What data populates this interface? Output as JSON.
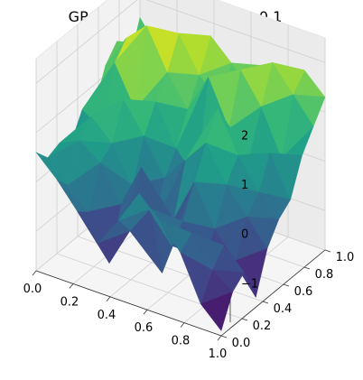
{
  "chart_data": {
    "type": "surface3d",
    "title": "GP prior with length scale 0.1",
    "xlabel": "",
    "ylabel": "",
    "zlabel": "",
    "xlim": [
      0.0,
      1.0
    ],
    "ylim": [
      0.0,
      1.0
    ],
    "zlim": [
      -1.8,
      2.5
    ],
    "x_ticks": [
      "0.0",
      "0.2",
      "0.4",
      "0.6",
      "0.8",
      "1.0"
    ],
    "y_ticks": [
      "0.0",
      "0.2",
      "0.4",
      "0.6",
      "0.8",
      "1.0"
    ],
    "z_ticks": [
      "−1",
      "0",
      "1",
      "2"
    ],
    "z_tick_values": [
      -1,
      0,
      1,
      2
    ],
    "colormap": "viridis",
    "grid": true,
    "x": [
      0.0,
      0.111,
      0.222,
      0.333,
      0.444,
      0.556,
      0.667,
      0.778,
      0.889,
      1.0
    ],
    "y": [
      0.0,
      0.111,
      0.222,
      0.333,
      0.444,
      0.556,
      0.667,
      0.778,
      0.889,
      1.0
    ],
    "z": [
      [
        0.6,
        0.2,
        -0.3,
        -0.8,
        -0.2,
        0.5,
        0.1,
        -0.4,
        -1.3,
        -1.7
      ],
      [
        0.3,
        -0.1,
        -0.5,
        -1.4,
        -0.6,
        0.0,
        -0.6,
        -0.2,
        -0.8,
        -1.1
      ],
      [
        0.4,
        0.6,
        0.3,
        -0.4,
        0.5,
        -1.5,
        -0.3,
        -0.9,
        -0.5,
        -0.9
      ],
      [
        0.2,
        0.9,
        0.5,
        -0.2,
        -0.9,
        -0.6,
        0.3,
        -0.5,
        -1.0,
        -1.6
      ],
      [
        0.7,
        0.4,
        1.2,
        0.6,
        -0.1,
        0.4,
        0.9,
        0.2,
        -0.3,
        -0.8
      ],
      [
        0.5,
        1.6,
        0.8,
        1.1,
        0.3,
        -0.2,
        1.4,
        0.6,
        0.0,
        -0.4
      ],
      [
        1.2,
        1.9,
        2.3,
        1.5,
        0.9,
        1.7,
        0.8,
        0.4,
        0.6,
        -0.2
      ],
      [
        1.5,
        1.1,
        1.6,
        2.1,
        1.4,
        1.0,
        1.8,
        1.2,
        0.3,
        0.5
      ],
      [
        0.8,
        1.4,
        0.9,
        1.3,
        2.0,
        1.6,
        1.1,
        1.9,
        1.4,
        0.9
      ],
      [
        1.6,
        1.0,
        1.5,
        0.7,
        1.2,
        0.9,
        1.5,
        1.0,
        1.7,
        1.3
      ]
    ]
  }
}
